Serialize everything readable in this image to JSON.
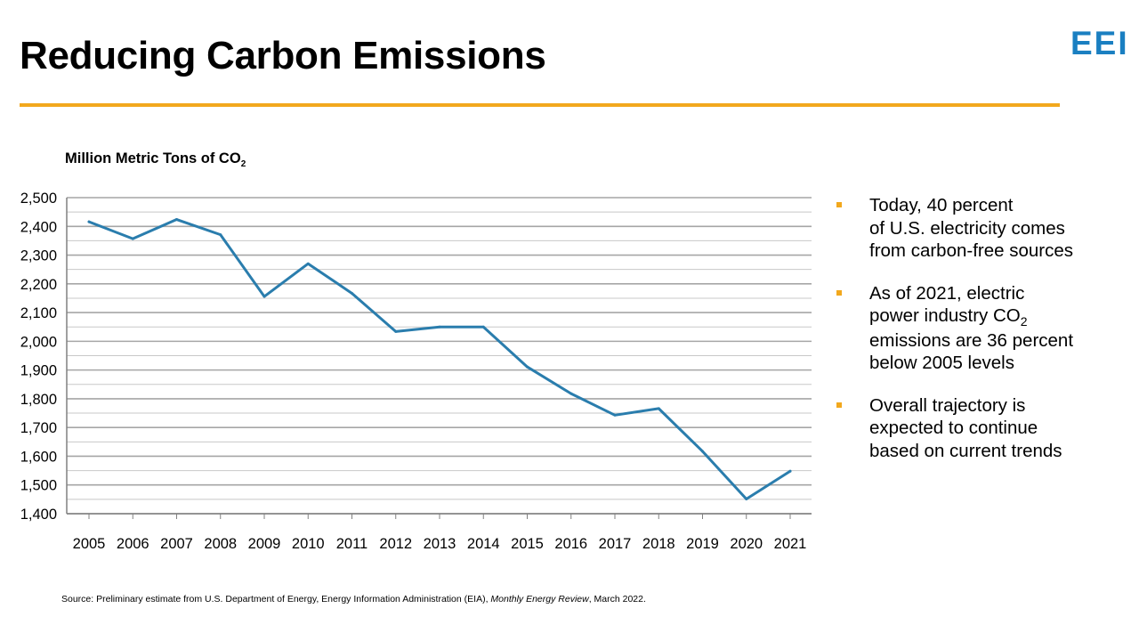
{
  "header": {
    "title": "Reducing Carbon Emissions",
    "logo_text": "EEI"
  },
  "colors": {
    "accent_rule": "#f2a81d",
    "line": "#2a7dad",
    "logo": "#1a7fc1",
    "gridline": "#a6a6a6"
  },
  "bullets": [
    {
      "text": "Today, 40 percent\nof U.S. electricity comes\nfrom carbon-free sources"
    },
    {
      "pre": "As of 2021, electric\npower industry CO",
      "sub": "2",
      "post": "\nemissions are 36 percent\nbelow 2005 levels"
    },
    {
      "text": "Overall trajectory is\nexpected to continue\nbased on current trends"
    }
  ],
  "source": {
    "pre": "Source: Preliminary estimate from U.S. Department of Energy, Energy Information Administration (EIA), ",
    "italic": "Monthly Energy Review",
    "post": ", March 2022."
  },
  "chart_data": {
    "type": "line",
    "ylabel": "Million Metric Tons of CO",
    "ylabel_sub": "2",
    "ylim": [
      1400,
      2500
    ],
    "yticks": [
      1400,
      1500,
      1600,
      1700,
      1800,
      1900,
      2000,
      2100,
      2200,
      2300,
      2400,
      2500
    ],
    "ytick_labels": [
      "1,400",
      "1,500",
      "1,600",
      "1,700",
      "1,800",
      "1,900",
      "2,000",
      "2,100",
      "2,200",
      "2,300",
      "2,400",
      "2,500"
    ],
    "grid": true,
    "legend": "none",
    "x": [
      "2005",
      "2006",
      "2007",
      "2008",
      "2009",
      "2010",
      "2011",
      "2012",
      "2013",
      "2014",
      "2015",
      "2016",
      "2017",
      "2018",
      "2019",
      "2020",
      "2021"
    ],
    "series": [
      {
        "values": [
          2416,
          2357,
          2424,
          2371,
          2156,
          2270,
          2167,
          2034,
          2050,
          2050,
          1911,
          1818,
          1743,
          1766,
          1617,
          1451,
          1548
        ]
      }
    ]
  }
}
